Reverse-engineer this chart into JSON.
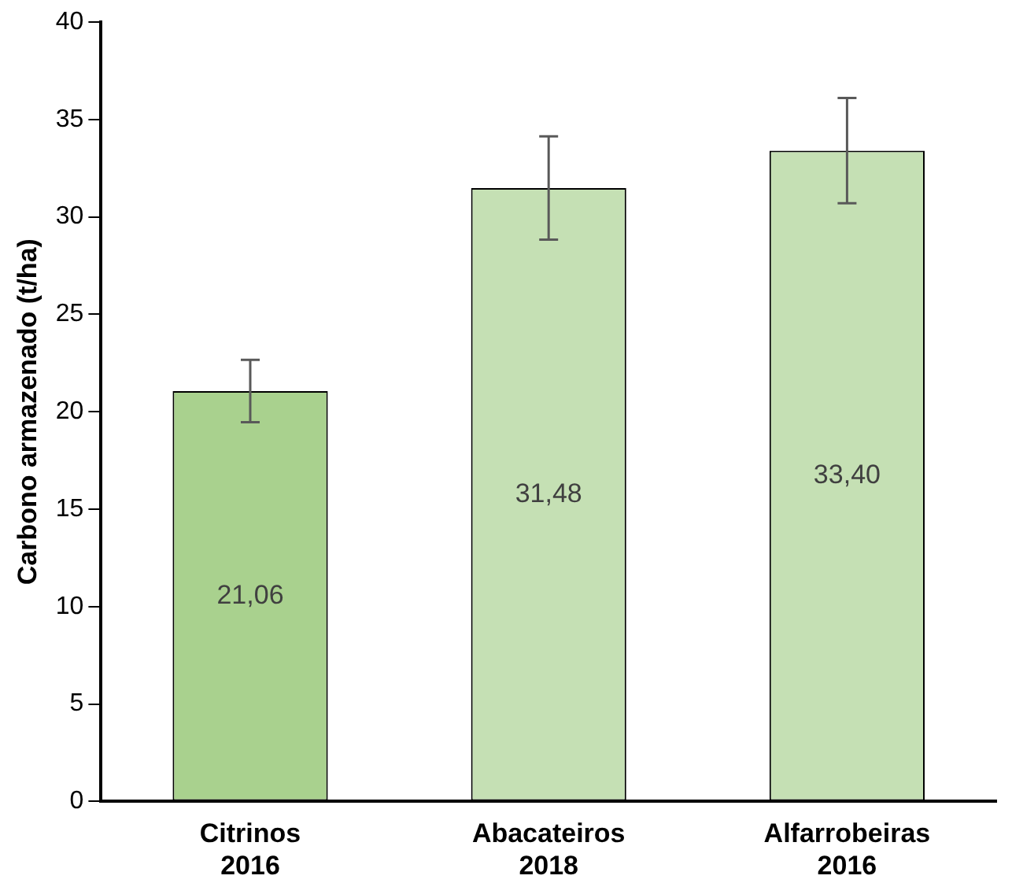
{
  "chart_data": {
    "type": "bar",
    "ylabel": "Carbono armazenado (t/ha)",
    "categories": [
      "Citrinos\n2016",
      "Abacateiros\n2018",
      "Alfarrobeiras\n2016"
    ],
    "values": [
      21.06,
      31.48,
      33.4
    ],
    "colors": [
      "#a9d18e",
      "#c5e0b4",
      "#c5e0b4"
    ],
    "errors": [
      1.6,
      2.65,
      2.7
    ],
    "value_labels": [
      "21,06",
      "31,48",
      "33,40"
    ],
    "ylim": [
      0,
      40
    ],
    "yticks": [
      0,
      5,
      10,
      15,
      20,
      25,
      30,
      35,
      40
    ],
    "grid": false,
    "legend": false
  }
}
